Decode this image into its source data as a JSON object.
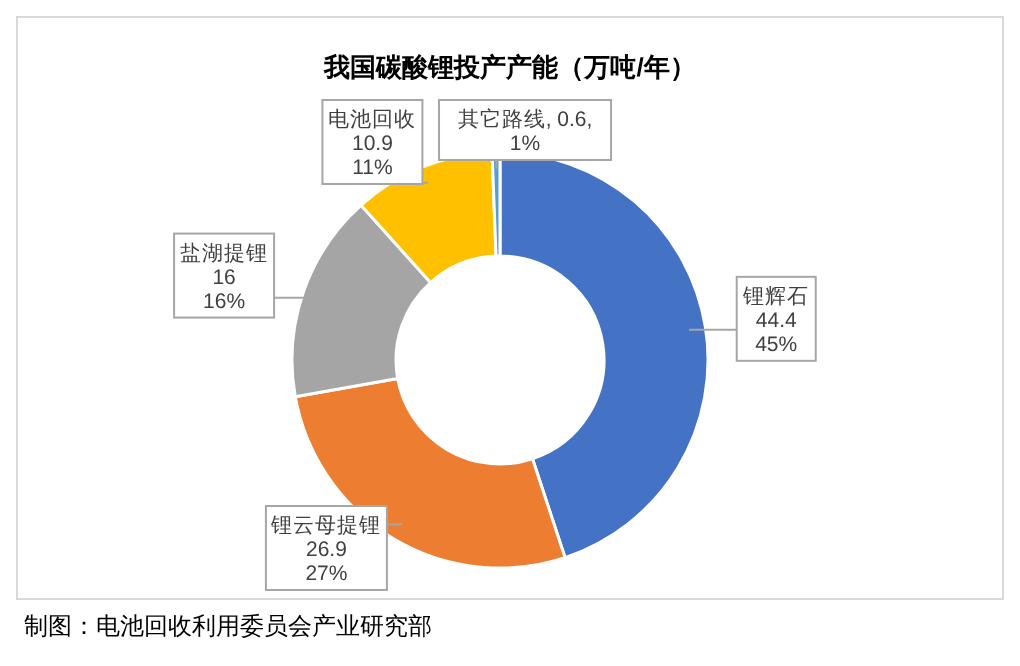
{
  "chart_data": {
    "type": "donut",
    "title": "我国碳酸锂投产产能（万吨/年）",
    "categories": [
      "锂辉石",
      "锂云母提锂",
      "盐湖提锂",
      "电池回收",
      "其它路线"
    ],
    "values": [
      44.4,
      26.9,
      16,
      10.9,
      0.6
    ],
    "colors": [
      "#4472c4",
      "#ed7d31",
      "#a5a5a5",
      "#ffc000",
      "#5b9bd5"
    ],
    "value_labels": [
      "44.4\n45%",
      "26.9\n27%",
      "16\n16%",
      "10.9\n11%",
      "0.6,\n1%"
    ],
    "annotations": [
      "制图：电池回收利用委员会产业研究部"
    ]
  }
}
